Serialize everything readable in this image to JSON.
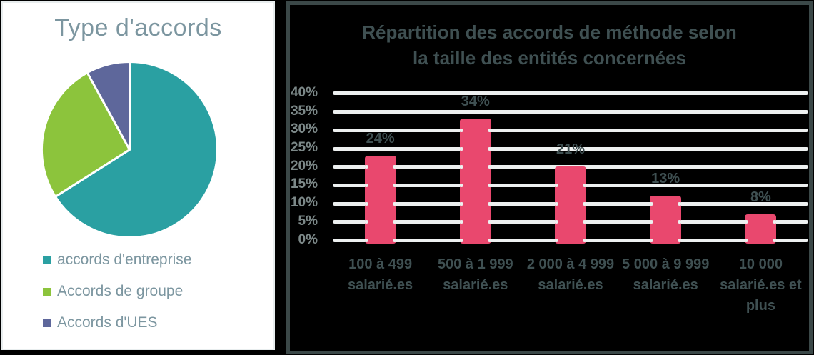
{
  "pie_panel": {
    "title": "Type d'accords",
    "chart_data": {
      "type": "pie",
      "labels": [
        "accords d'entreprise",
        "Accords de groupe",
        "Accords d'UES"
      ],
      "values": [
        66,
        26,
        8
      ],
      "colors": [
        "#2aa0a2",
        "#8cc43c",
        "#5e679b"
      ],
      "start_angle_deg": 0,
      "direction": "clockwise",
      "legend_position": "bottom-left",
      "slice_border_color": "#ffffff"
    },
    "card_background": "#ffffff",
    "title_color": "#7c96a0"
  },
  "bar_panel": {
    "title_lines": [
      "Répartition des accords de méthode selon",
      "la taille des entités concernées"
    ],
    "title": "Répartition des accords de méthode selon la taille des entités concernées",
    "chart_data": {
      "type": "bar",
      "categories": [
        "100 à 499 salarié.es",
        "500 à 1 999 salarié.es",
        "2 000 à 4 999 salarié.es",
        "5 000 à 9 999 salarié.es",
        "10 000 salarié.es et plus"
      ],
      "category_lines": [
        [
          "100 à 499",
          "salarié.es"
        ],
        [
          "500 à 1 999",
          "salarié.es"
        ],
        [
          "2 000 à 4 999",
          "salarié.es"
        ],
        [
          "5 000 à 9 999",
          "salarié.es"
        ],
        [
          "10 000",
          "salarié.es et",
          "plus"
        ]
      ],
      "values": [
        24,
        34,
        21,
        13,
        8
      ],
      "data_labels": [
        "24%",
        "34%",
        "21%",
        "13%",
        "8%"
      ],
      "ytick_labels": [
        "0%",
        "5%",
        "10%",
        "15%",
        "20%",
        "25%",
        "30%",
        "35%",
        "40%"
      ],
      "ylim": [
        0,
        40
      ],
      "ytick_step": 5,
      "grid": "on",
      "legend": "none",
      "bar_color": "#e9486e",
      "grid_color": "#edf0f0",
      "tick_color": "#7c8888",
      "label_color": "#3f5052",
      "title_color": "#3f5052",
      "panel_background": "#000000",
      "panel_border_color": "#3b4848"
    }
  }
}
